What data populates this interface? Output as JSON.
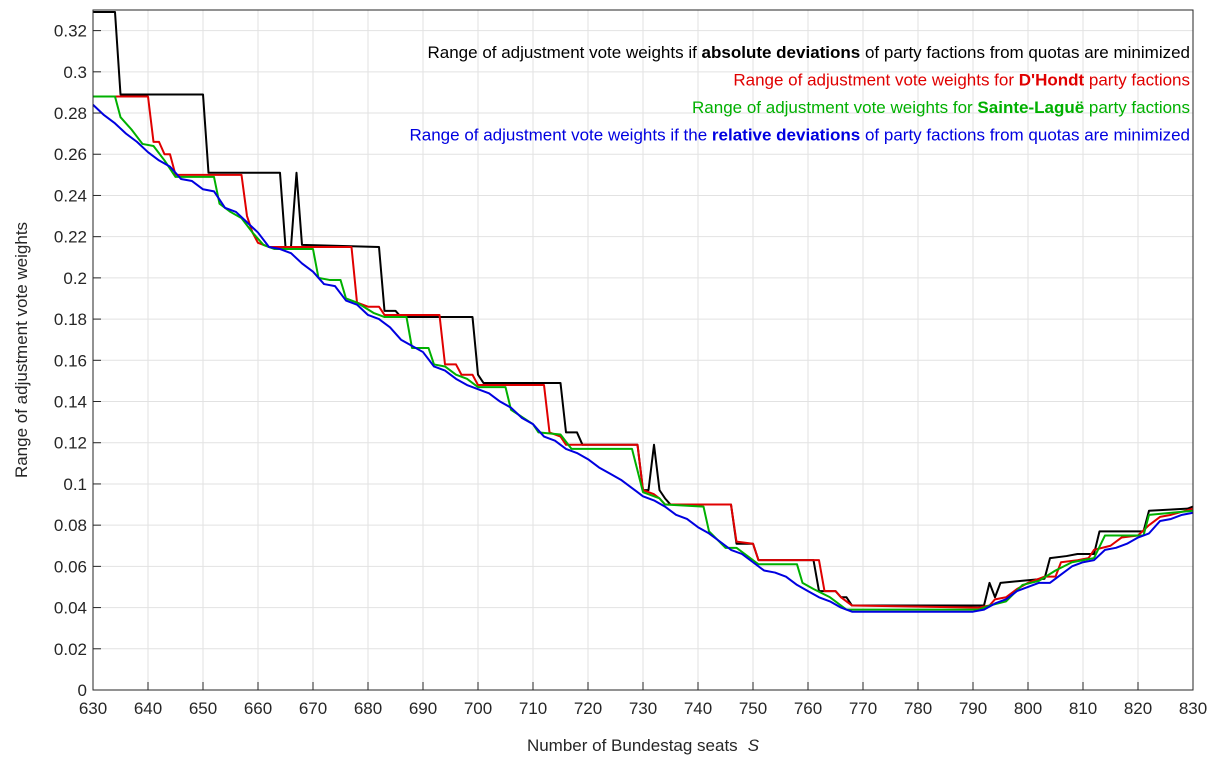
{
  "chart_data": {
    "type": "line",
    "xlabel": "Number of Bundestag seats",
    "xlabel_symbol": "S",
    "ylabel": "Range of adjustment vote weights",
    "xlim": [
      630,
      830
    ],
    "xticks": [
      630,
      640,
      650,
      660,
      670,
      680,
      690,
      700,
      710,
      720,
      730,
      740,
      750,
      760,
      770,
      780,
      790,
      800,
      810,
      820,
      830
    ],
    "ylim": [
      0,
      0.33
    ],
    "yticks": [
      0,
      0.02,
      0.04,
      0.06,
      0.08,
      0.1,
      0.12,
      0.14,
      0.16,
      0.18,
      0.2,
      0.22,
      0.24,
      0.26,
      0.28,
      0.3,
      0.32
    ],
    "grid": true,
    "legend": "upper right",
    "series": [
      {
        "name": "Range of adjustment vote weights if absolute deviations of party factions from quotas are minimized",
        "name_bold": "absolute deviations",
        "color": "#000000",
        "x": [
          630,
          634,
          635,
          650,
          651,
          664,
          665,
          666,
          667,
          668,
          682,
          683,
          685,
          686,
          699,
          700,
          701,
          715,
          716,
          718,
          719,
          729,
          730,
          731,
          732,
          733,
          734,
          735,
          746,
          747,
          750,
          751,
          761,
          762,
          765,
          766,
          767,
          768,
          791,
          792,
          793,
          794,
          795,
          799,
          803,
          804,
          807,
          809,
          812,
          813,
          821,
          822,
          829,
          830
        ],
        "values": [
          0.329,
          0.329,
          0.289,
          0.289,
          0.251,
          0.251,
          0.215,
          0.215,
          0.251,
          0.216,
          0.215,
          0.184,
          0.184,
          0.181,
          0.181,
          0.153,
          0.149,
          0.149,
          0.125,
          0.125,
          0.119,
          0.119,
          0.097,
          0.097,
          0.119,
          0.097,
          0.093,
          0.09,
          0.09,
          0.071,
          0.071,
          0.063,
          0.063,
          0.048,
          0.048,
          0.045,
          0.045,
          0.041,
          0.041,
          0.041,
          0.052,
          0.045,
          0.052,
          0.053,
          0.054,
          0.064,
          0.065,
          0.066,
          0.066,
          0.077,
          0.077,
          0.087,
          0.088,
          0.089
        ]
      },
      {
        "name": "Range of adjustment vote weights for D'Hondt party factions",
        "name_bold": "D'Hondt",
        "color": "#e00000",
        "x": [
          630,
          640,
          641,
          642,
          643,
          644,
          645,
          657,
          658,
          659,
          660,
          662,
          677,
          678,
          680,
          682,
          683,
          693,
          694,
          696,
          697,
          699,
          700,
          712,
          713,
          715,
          716,
          729,
          730,
          732,
          733,
          734,
          746,
          747,
          750,
          751,
          762,
          763,
          765,
          766,
          767,
          768,
          791,
          793,
          794,
          796,
          798,
          800,
          803,
          805,
          806,
          809,
          811,
          812,
          815,
          817,
          820,
          822,
          824,
          826,
          830
        ],
        "values": [
          0.288,
          0.288,
          0.266,
          0.266,
          0.26,
          0.26,
          0.25,
          0.25,
          0.23,
          0.222,
          0.217,
          0.215,
          0.215,
          0.188,
          0.186,
          0.186,
          0.182,
          0.182,
          0.158,
          0.158,
          0.153,
          0.153,
          0.148,
          0.148,
          0.125,
          0.123,
          0.119,
          0.119,
          0.097,
          0.095,
          0.093,
          0.09,
          0.09,
          0.072,
          0.071,
          0.063,
          0.063,
          0.048,
          0.048,
          0.045,
          0.043,
          0.041,
          0.04,
          0.041,
          0.044,
          0.045,
          0.049,
          0.052,
          0.055,
          0.055,
          0.062,
          0.063,
          0.064,
          0.068,
          0.07,
          0.074,
          0.075,
          0.08,
          0.084,
          0.085,
          0.088
        ]
      },
      {
        "name": "Range of adjustment vote weights for Sainte-Laguë party factions",
        "name_bold": "Sainte-Laguë",
        "color": "#00b000",
        "x": [
          630,
          634,
          635,
          637,
          639,
          641,
          643,
          645,
          652,
          653,
          655,
          657,
          659,
          661,
          663,
          670,
          671,
          673,
          675,
          676,
          678,
          681,
          683,
          687,
          688,
          691,
          692,
          694,
          696,
          698,
          700,
          705,
          706,
          710,
          711,
          715,
          717,
          728,
          730,
          733,
          734,
          741,
          742,
          745,
          747,
          749,
          751,
          758,
          759,
          761,
          764,
          767,
          791,
          793,
          796,
          799,
          802,
          805,
          808,
          812,
          814,
          821,
          822,
          830
        ],
        "values": [
          0.288,
          0.288,
          0.278,
          0.272,
          0.265,
          0.264,
          0.257,
          0.249,
          0.249,
          0.236,
          0.232,
          0.229,
          0.222,
          0.216,
          0.214,
          0.214,
          0.2,
          0.199,
          0.199,
          0.19,
          0.188,
          0.183,
          0.181,
          0.181,
          0.166,
          0.166,
          0.158,
          0.157,
          0.153,
          0.151,
          0.147,
          0.147,
          0.136,
          0.129,
          0.125,
          0.124,
          0.117,
          0.117,
          0.096,
          0.093,
          0.09,
          0.089,
          0.077,
          0.069,
          0.069,
          0.065,
          0.061,
          0.061,
          0.052,
          0.049,
          0.045,
          0.039,
          0.039,
          0.041,
          0.043,
          0.051,
          0.053,
          0.058,
          0.062,
          0.064,
          0.075,
          0.075,
          0.085,
          0.087
        ]
      },
      {
        "name": "Range of adjustment vote weights if the relative deviations of party factions from quotas are minimized",
        "name_bold": "relative deviations",
        "color": "#0000e0",
        "x": [
          630,
          632,
          634,
          636,
          638,
          640,
          642,
          644,
          646,
          648,
          650,
          652,
          654,
          656,
          658,
          660,
          662,
          664,
          666,
          668,
          670,
          672,
          674,
          676,
          678,
          680,
          682,
          684,
          686,
          688,
          690,
          692,
          694,
          696,
          698,
          700,
          702,
          704,
          706,
          708,
          710,
          712,
          714,
          716,
          718,
          720,
          722,
          724,
          726,
          728,
          730,
          732,
          734,
          736,
          738,
          740,
          742,
          744,
          746,
          748,
          750,
          752,
          754,
          756,
          758,
          760,
          762,
          764,
          766,
          768,
          790,
          792,
          794,
          796,
          798,
          800,
          802,
          804,
          806,
          808,
          810,
          812,
          814,
          816,
          818,
          820,
          822,
          824,
          826,
          828,
          830
        ],
        "values": [
          0.284,
          0.279,
          0.275,
          0.27,
          0.266,
          0.261,
          0.257,
          0.254,
          0.248,
          0.247,
          0.243,
          0.242,
          0.234,
          0.232,
          0.227,
          0.222,
          0.215,
          0.214,
          0.212,
          0.207,
          0.203,
          0.197,
          0.196,
          0.189,
          0.187,
          0.182,
          0.18,
          0.176,
          0.17,
          0.167,
          0.164,
          0.157,
          0.155,
          0.151,
          0.148,
          0.146,
          0.144,
          0.14,
          0.137,
          0.132,
          0.129,
          0.123,
          0.121,
          0.117,
          0.115,
          0.112,
          0.108,
          0.105,
          0.102,
          0.098,
          0.094,
          0.092,
          0.089,
          0.085,
          0.083,
          0.079,
          0.076,
          0.072,
          0.068,
          0.066,
          0.062,
          0.058,
          0.057,
          0.055,
          0.051,
          0.048,
          0.045,
          0.043,
          0.04,
          0.038,
          0.038,
          0.039,
          0.042,
          0.044,
          0.048,
          0.05,
          0.052,
          0.052,
          0.056,
          0.06,
          0.062,
          0.063,
          0.068,
          0.069,
          0.071,
          0.074,
          0.076,
          0.082,
          0.083,
          0.085,
          0.086
        ]
      }
    ]
  }
}
